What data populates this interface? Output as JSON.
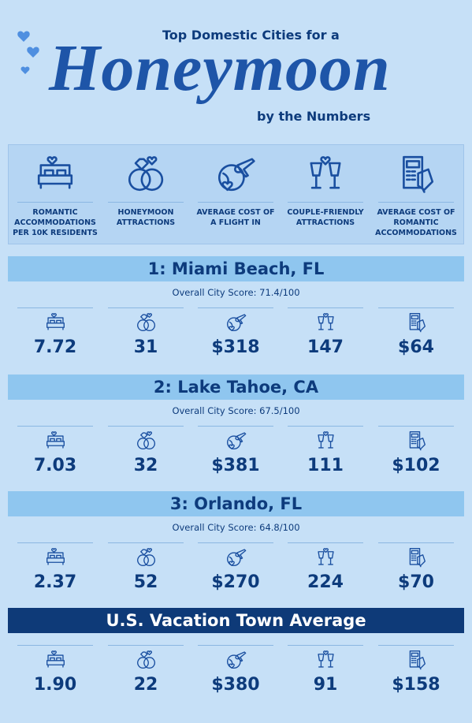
{
  "header": {
    "line1": "Top Domestic Cities for a",
    "title": "Honeymoon",
    "line2": "by the Numbers"
  },
  "metrics": [
    "ROMANTIC ACCOMMODATIONS PER 10K RESIDENTS",
    "HONEYMOON ATTRACTIONS",
    "AVERAGE COST OF A FLIGHT IN",
    "COUPLE-FRIENDLY ATTRACTIONS",
    "AVERAGE COST OF ROMANTIC ACCOMMODATIONS"
  ],
  "sections": [
    {
      "title": "1: Miami Beach, FL",
      "score": "Overall City Score: 71.4/100",
      "values": [
        "7.72",
        "31",
        "$318",
        "147",
        "$64"
      ]
    },
    {
      "title": "2: Lake Tahoe, CA",
      "score": "Overall City Score: 67.5/100",
      "values": [
        "7.03",
        "32",
        "$381",
        "111",
        "$102"
      ]
    },
    {
      "title": "3: Orlando, FL",
      "score": "Overall City Score: 64.8/100",
      "values": [
        "2.37",
        "52",
        "$270",
        "224",
        "$70"
      ]
    },
    {
      "title": "U.S. Vacation Town Average",
      "values": [
        "1.90",
        "22",
        "$380",
        "91",
        "$158"
      ]
    }
  ]
}
